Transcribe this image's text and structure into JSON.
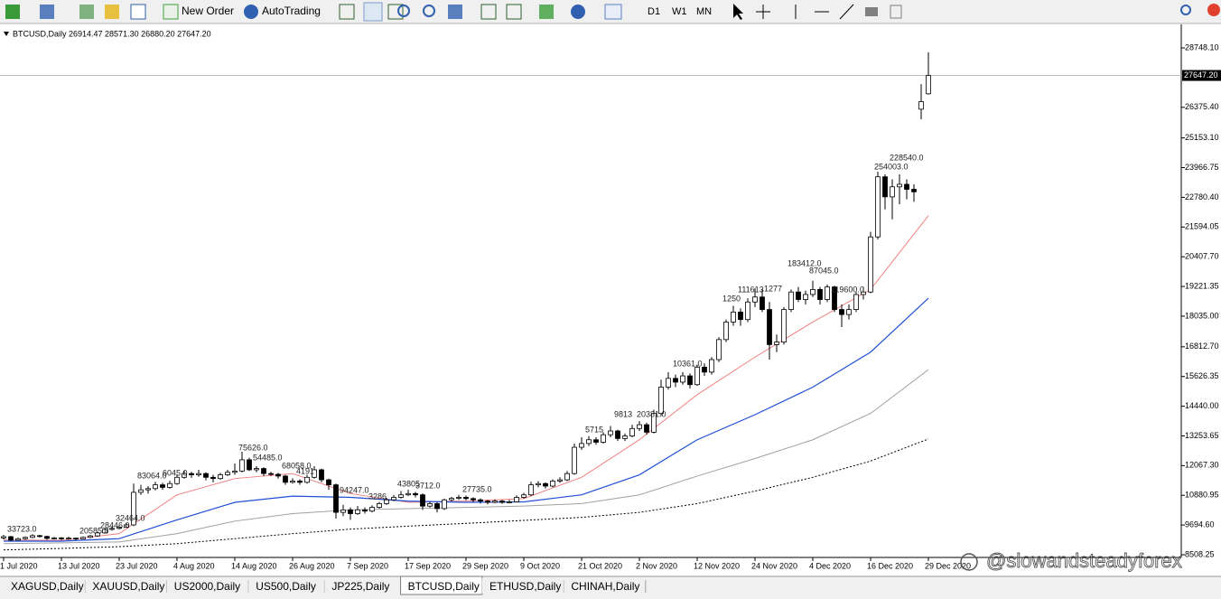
{
  "toolbar": {
    "new_order": "New Order",
    "auto_trading": "AutoTrading",
    "periods": [
      "D1",
      "W1",
      "MN"
    ]
  },
  "tabs": [
    "XAGUSD,Daily",
    "XAUUSD,Daily",
    "US2000,Daily",
    "US500,Daily",
    "JP225,Daily",
    "BTCUSD,Daily",
    "ETHUSD,Daily",
    "CHINAH,Daily"
  ],
  "active_tab": 5,
  "watermark": "@slowandsteadyforex",
  "chart_data": {
    "type": "candlestick",
    "header": "BTCUSD,Daily  26914.47 28571.30 26880.20 27647.20",
    "grid": false,
    "up_color": "#ffffff",
    "down_color": "#000000",
    "categories": [
      "1 Jul 2020",
      null,
      null,
      null,
      null,
      null,
      null,
      null,
      "13 Jul 2020",
      null,
      null,
      null,
      null,
      null,
      null,
      null,
      "23 Jul 2020",
      null,
      null,
      null,
      null,
      null,
      null,
      null,
      "4 Aug 2020",
      null,
      null,
      null,
      null,
      null,
      null,
      null,
      "14 Aug 2020",
      null,
      null,
      null,
      null,
      null,
      null,
      null,
      "26 Aug 2020",
      null,
      null,
      null,
      null,
      null,
      null,
      null,
      "7 Sep 2020",
      null,
      null,
      null,
      null,
      null,
      null,
      null,
      "17 Sep 2020",
      null,
      null,
      null,
      null,
      null,
      null,
      null,
      "29 Sep 2020",
      null,
      null,
      null,
      null,
      null,
      null,
      null,
      "9 Oct 2020",
      null,
      null,
      null,
      null,
      null,
      null,
      null,
      "21 Oct 2020",
      null,
      null,
      null,
      null,
      null,
      null,
      null,
      "2 Nov 2020",
      null,
      null,
      null,
      null,
      null,
      null,
      null,
      "12 Nov 2020",
      null,
      null,
      null,
      null,
      null,
      null,
      null,
      "24 Nov 2020",
      null,
      null,
      null,
      null,
      null,
      null,
      null,
      "4 Dec 2020",
      null,
      null,
      null,
      null,
      null,
      null,
      null,
      "16 Dec 2020",
      null,
      null,
      null,
      null,
      null,
      null,
      null,
      "29 Dec 2020"
    ],
    "ohlc": [
      [
        9180,
        9300,
        9120,
        9230
      ],
      [
        9230,
        9260,
        9050,
        9090
      ],
      [
        9090,
        9190,
        9060,
        9150
      ],
      [
        9150,
        9240,
        9110,
        9200
      ],
      [
        9200,
        9330,
        9170,
        9270
      ],
      [
        9270,
        9300,
        9200,
        9240
      ],
      [
        9240,
        9260,
        9110,
        9160
      ],
      [
        9160,
        9220,
        9120,
        9180
      ],
      [
        9180,
        9210,
        9100,
        9150
      ],
      [
        9150,
        9230,
        9110,
        9170
      ],
      [
        9170,
        9190,
        9090,
        9140
      ],
      [
        9140,
        9240,
        9120,
        9200
      ],
      [
        9200,
        9300,
        9170,
        9260
      ],
      [
        9260,
        9420,
        9230,
        9380
      ],
      [
        9380,
        9570,
        9350,
        9520
      ],
      [
        9520,
        9640,
        9470,
        9560
      ],
      [
        9560,
        9680,
        9520,
        9610
      ],
      [
        9610,
        9760,
        9580,
        9700
      ],
      [
        9700,
        11350,
        9650,
        11000
      ],
      [
        11000,
        11300,
        10900,
        11100
      ],
      [
        11100,
        11250,
        10950,
        11150
      ],
      [
        11150,
        11420,
        11080,
        11300
      ],
      [
        11300,
        11380,
        11100,
        11200
      ],
      [
        11200,
        11460,
        11150,
        11350
      ],
      [
        11350,
        11720,
        11300,
        11600
      ],
      [
        11600,
        11880,
        11550,
        11750
      ],
      [
        11750,
        11820,
        11580,
        11700
      ],
      [
        11700,
        11900,
        11620,
        11750
      ],
      [
        11750,
        11800,
        11480,
        11600
      ],
      [
        11600,
        11700,
        11400,
        11550
      ],
      [
        11550,
        11780,
        11500,
        11700
      ],
      [
        11700,
        11900,
        11650,
        11800
      ],
      [
        11800,
        12150,
        11700,
        11850
      ],
      [
        11850,
        12620,
        11800,
        12300
      ],
      [
        12300,
        12380,
        11850,
        11900
      ],
      [
        11900,
        12050,
        11800,
        11950
      ],
      [
        11950,
        12000,
        11650,
        11750
      ],
      [
        11750,
        11820,
        11650,
        11720
      ],
      [
        11720,
        11780,
        11550,
        11650
      ],
      [
        11650,
        11700,
        11300,
        11400
      ],
      [
        11400,
        11560,
        11350,
        11450
      ],
      [
        11450,
        11520,
        11300,
        11400
      ],
      [
        11400,
        11700,
        11350,
        11600
      ],
      [
        11600,
        12050,
        11550,
        11900
      ],
      [
        11900,
        11950,
        11400,
        11500
      ],
      [
        11500,
        11550,
        11100,
        11300
      ],
      [
        11300,
        11350,
        9950,
        10200
      ],
      [
        10200,
        10500,
        10050,
        10300
      ],
      [
        10300,
        10400,
        9900,
        10150
      ],
      [
        10150,
        10450,
        10100,
        10300
      ],
      [
        10300,
        10400,
        10150,
        10250
      ],
      [
        10250,
        10480,
        10200,
        10400
      ],
      [
        10400,
        10620,
        10350,
        10550
      ],
      [
        10550,
        10780,
        10500,
        10700
      ],
      [
        10700,
        10900,
        10650,
        10800
      ],
      [
        10800,
        11050,
        10750,
        10900
      ],
      [
        10900,
        11100,
        10850,
        10950
      ],
      [
        10950,
        11020,
        10800,
        10900
      ],
      [
        10900,
        10960,
        10300,
        10450
      ],
      [
        10450,
        10620,
        10400,
        10550
      ],
      [
        10550,
        10600,
        10200,
        10350
      ],
      [
        10350,
        10750,
        10300,
        10700
      ],
      [
        10700,
        10820,
        10650,
        10760
      ],
      [
        10760,
        10900,
        10700,
        10800
      ],
      [
        10800,
        10870,
        10680,
        10750
      ],
      [
        10750,
        10800,
        10600,
        10700
      ],
      [
        10700,
        10760,
        10550,
        10650
      ],
      [
        10650,
        10700,
        10520,
        10600
      ],
      [
        10600,
        10720,
        10560,
        10650
      ],
      [
        10650,
        10700,
        10540,
        10600
      ],
      [
        10600,
        10700,
        10560,
        10620
      ],
      [
        10620,
        10880,
        10600,
        10800
      ],
      [
        10800,
        10980,
        10750,
        10900
      ],
      [
        10900,
        11420,
        10850,
        11300
      ],
      [
        11300,
        11450,
        11200,
        11350
      ],
      [
        11350,
        11400,
        11150,
        11250
      ],
      [
        11250,
        11520,
        11200,
        11450
      ],
      [
        11450,
        11600,
        11380,
        11500
      ],
      [
        11500,
        11850,
        11450,
        11750
      ],
      [
        11750,
        12950,
        11700,
        12800
      ],
      [
        12800,
        13200,
        12700,
        12950
      ],
      [
        12950,
        13250,
        12850,
        13100
      ],
      [
        13100,
        13200,
        12900,
        13000
      ],
      [
        13000,
        13400,
        12950,
        13300
      ],
      [
        13300,
        13650,
        13200,
        13450
      ],
      [
        13450,
        13500,
        13050,
        13150
      ],
      [
        13150,
        13350,
        13050,
        13250
      ],
      [
        13250,
        13700,
        13200,
        13550
      ],
      [
        13550,
        13850,
        13450,
        13700
      ],
      [
        13700,
        13780,
        13300,
        13400
      ],
      [
        13400,
        14300,
        13350,
        14150
      ],
      [
        14150,
        15500,
        14050,
        15200
      ],
      [
        15200,
        15800,
        15100,
        15550
      ],
      [
        15550,
        15700,
        15200,
        15400
      ],
      [
        15400,
        15800,
        15300,
        15650
      ],
      [
        15650,
        15750,
        15150,
        15300
      ],
      [
        15300,
        16100,
        15250,
        16000
      ],
      [
        16000,
        16150,
        15650,
        15800
      ],
      [
        15800,
        16400,
        15700,
        16300
      ],
      [
        16300,
        17200,
        16200,
        17100
      ],
      [
        17100,
        17900,
        17000,
        17800
      ],
      [
        17800,
        18450,
        17650,
        18200
      ],
      [
        18200,
        18350,
        17650,
        17900
      ],
      [
        17900,
        18750,
        17800,
        18600
      ],
      [
        18600,
        19150,
        18400,
        18800
      ],
      [
        18800,
        19100,
        18200,
        18300
      ],
      [
        18300,
        18600,
        16300,
        16900
      ],
      [
        16900,
        17300,
        16600,
        17000
      ],
      [
        17000,
        18400,
        16900,
        18300
      ],
      [
        18300,
        19100,
        18200,
        19000
      ],
      [
        19000,
        19200,
        18600,
        18700
      ],
      [
        18700,
        19050,
        18500,
        18900
      ],
      [
        18900,
        19450,
        18800,
        19100
      ],
      [
        19100,
        19200,
        18500,
        18700
      ],
      [
        18700,
        19300,
        18600,
        19200
      ],
      [
        19200,
        19250,
        18200,
        18300
      ],
      [
        18300,
        18500,
        17600,
        18100
      ],
      [
        18100,
        18500,
        17900,
        18300
      ],
      [
        18300,
        19000,
        18200,
        18900
      ],
      [
        18900,
        19200,
        18700,
        19000
      ],
      [
        19000,
        21400,
        18950,
        21200
      ],
      [
        21200,
        23800,
        21100,
        23600
      ],
      [
        23600,
        23700,
        22300,
        22800
      ],
      [
        22800,
        23500,
        21900,
        23200
      ],
      [
        23200,
        23700,
        22500,
        23300
      ],
      [
        23300,
        23500,
        22700,
        23100
      ],
      [
        23100,
        23300,
        22600,
        23000
      ],
      [
        26300,
        27300,
        25900,
        26600
      ],
      [
        26914.47,
        28571.3,
        26880.2,
        27647.2
      ]
    ],
    "moving_averages": [
      {
        "color": "#f08080",
        "style": "solid",
        "values": [
          9100,
          9080,
          9350,
          10900,
          11550,
          11750,
          10950,
          10600,
          10650,
          10750,
          11600,
          13100,
          14900,
          16400,
          17800,
          19100,
          22050
        ]
      },
      {
        "color": "#1f4fd8",
        "style": "solid",
        "values": [
          9050,
          9050,
          9150,
          9900,
          10600,
          10850,
          10800,
          10650,
          10600,
          10620,
          10900,
          11700,
          13100,
          14100,
          15200,
          16600,
          18750
        ]
      },
      {
        "color": "#a0a0a0",
        "style": "solid",
        "values": [
          8950,
          8980,
          9020,
          9350,
          9850,
          10150,
          10300,
          10350,
          10400,
          10450,
          10550,
          10900,
          11650,
          12350,
          13100,
          14150,
          15900
        ]
      },
      {
        "color": "#000000",
        "style": "dotted",
        "values": [
          8700,
          8760,
          8830,
          8950,
          9150,
          9350,
          9530,
          9650,
          9760,
          9880,
          10000,
          10200,
          10550,
          11050,
          11600,
          12250,
          13130
        ]
      }
    ],
    "ylim": [
      8400,
      29686
    ],
    "yticks": [
      {
        "value": 28748.1,
        "label": "28748.10"
      },
      {
        "value": 26375.4,
        "label": "26375.40"
      },
      {
        "value": 25153.1,
        "label": "25153.10"
      },
      23966.75,
      {
        "value": 22780.4,
        "label": "22780.40"
      },
      21594.05,
      {
        "value": 20407.7,
        "label": "20407.70"
      },
      19221.35,
      {
        "value": 18035,
        "label": "18035.00"
      },
      {
        "value": 16812.7,
        "label": "16812.70"
      },
      15626.35,
      {
        "value": 14440,
        "label": "14440.00"
      },
      13253.65,
      {
        "value": 12067.3,
        "label": "12067.30"
      },
      10880.95,
      {
        "value": 9694.6,
        "label": "9694.60"
      },
      8508.25
    ],
    "price_label": {
      "value": 27647.2,
      "label": "27647.20"
    },
    "annotations": [
      "33723.0",
      "20585.0",
      "28446.0",
      "32464.0",
      "83064.0",
      "6045.0",
      "75626.0",
      "54485.0",
      "68058.0",
      "4191",
      "94247.0",
      "3286",
      "43805",
      "3712.0",
      "27735.0",
      "5715",
      "9813",
      "20381.0",
      "10361.0",
      "1250",
      "111613",
      "1277",
      "183412.0",
      "87045.0",
      "119600.0",
      "254003.0",
      "228540.0"
    ]
  }
}
